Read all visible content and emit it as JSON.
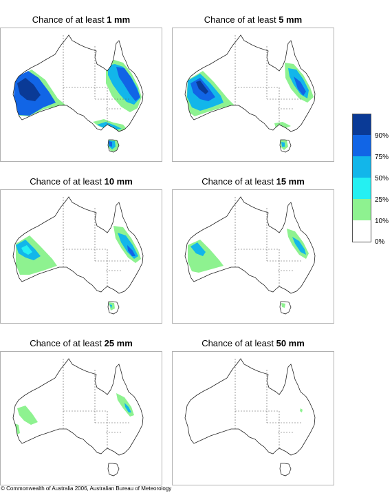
{
  "title_prefix": "Chance of at least",
  "panels": [
    {
      "amount": "1 mm"
    },
    {
      "amount": "5 mm"
    },
    {
      "amount": "10 mm"
    },
    {
      "amount": "15 mm"
    },
    {
      "amount": "25 mm"
    },
    {
      "amount": "50 mm"
    }
  ],
  "legend": {
    "labels": [
      "90%",
      "75%",
      "50%",
      "25%",
      "10%",
      "0%"
    ],
    "colors": [
      "#0a3a96",
      "#1165e6",
      "#12b6ea",
      "#25f0f2",
      "#8ef290",
      "#ffffff"
    ]
  },
  "copyright": "© Commonwealth of Australia 2006, Australian Bureau of Meteorology"
}
